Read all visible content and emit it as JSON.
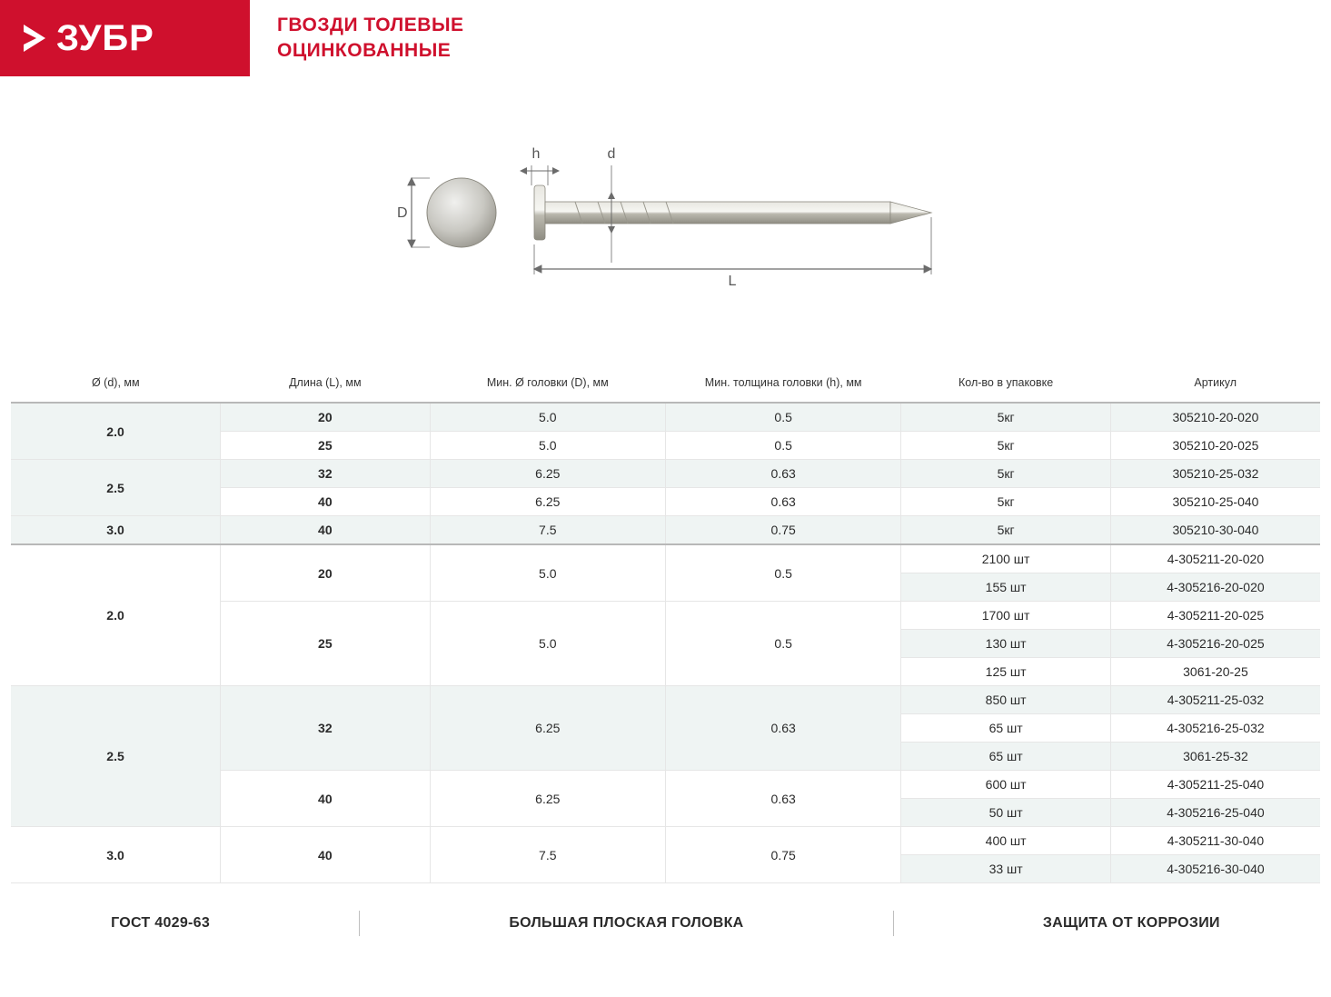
{
  "brand": "ЗУБР",
  "title_line1": "ГВОЗДИ ТОЛЕВЫЕ",
  "title_line2": "ОЦИНКОВАННЫЕ",
  "colors": {
    "brand_red": "#cf102d",
    "row_alt": "#eff4f3",
    "border": "#e6e6e6",
    "section_border": "#b8b8b8"
  },
  "diagram": {
    "labels": {
      "D": "D",
      "h": "h",
      "d": "d",
      "L": "L"
    }
  },
  "table": {
    "columns": [
      "Ø (d), мм",
      "Длина (L), мм",
      "Мин. Ø головки (D), мм",
      "Мин. толщина головки (h), мм",
      "Кол-во в упаковке",
      "Артикул"
    ],
    "rows": [
      {
        "d": "2.0",
        "d_span": 2,
        "L": "20",
        "L_span": 1,
        "D": "5.0",
        "D_span": 1,
        "h": "0.5",
        "h_span": 1,
        "q": "5кг",
        "art": "305210-20-020",
        "alt": true,
        "section": false
      },
      {
        "L": "25",
        "L_span": 1,
        "D": "5.0",
        "D_span": 1,
        "h": "0.5",
        "h_span": 1,
        "q": "5кг",
        "art": "305210-20-025",
        "alt": false
      },
      {
        "d": "2.5",
        "d_span": 2,
        "L": "32",
        "L_span": 1,
        "D": "6.25",
        "D_span": 1,
        "h": "0.63",
        "h_span": 1,
        "q": "5кг",
        "art": "305210-25-032",
        "alt": true
      },
      {
        "L": "40",
        "L_span": 1,
        "D": "6.25",
        "D_span": 1,
        "h": "0.63",
        "h_span": 1,
        "q": "5кг",
        "art": "305210-25-040",
        "alt": false
      },
      {
        "d": "3.0",
        "d_span": 1,
        "L": "40",
        "L_span": 1,
        "D": "7.5",
        "D_span": 1,
        "h": "0.75",
        "h_span": 1,
        "q": "5кг",
        "art": "305210-30-040",
        "alt": true
      },
      {
        "d": "2.0",
        "d_span": 5,
        "L": "20",
        "L_span": 2,
        "D": "5.0",
        "D_span": 2,
        "h": "0.5",
        "h_span": 2,
        "q": "2100 шт",
        "art": "4-305211-20-020",
        "alt": false,
        "section": true
      },
      {
        "q": "155 шт",
        "art": "4-305216-20-020",
        "alt": true
      },
      {
        "L": "25",
        "L_span": 3,
        "D": "5.0",
        "D_span": 3,
        "h": "0.5",
        "h_span": 3,
        "q": "1700 шт",
        "art": "4-305211-20-025",
        "alt": false
      },
      {
        "q": "130 шт",
        "art": "4-305216-20-025",
        "alt": true
      },
      {
        "q": "125 шт",
        "art": "3061-20-25",
        "alt": false
      },
      {
        "d": "2.5",
        "d_span": 5,
        "L": "32",
        "L_span": 3,
        "D": "6.25",
        "D_span": 3,
        "h": "0.63",
        "h_span": 3,
        "q": "850 шт",
        "art": "4-305211-25-032",
        "alt": true
      },
      {
        "q": "65 шт",
        "art": "4-305216-25-032",
        "alt": false
      },
      {
        "q": "65 шт",
        "art": "3061-25-32",
        "alt": true
      },
      {
        "L": "40",
        "L_span": 2,
        "D": "6.25",
        "D_span": 2,
        "h": "0.63",
        "h_span": 2,
        "q": "600 шт",
        "art": "4-305211-25-040",
        "alt": false
      },
      {
        "q": "50 шт",
        "art": "4-305216-25-040",
        "alt": true
      },
      {
        "d": "3.0",
        "d_span": 2,
        "L": "40",
        "L_span": 2,
        "D": "7.5",
        "D_span": 2,
        "h": "0.75",
        "h_span": 2,
        "q": "400 шт",
        "art": "4-305211-30-040",
        "alt": false
      },
      {
        "q": "33 шт",
        "art": "4-305216-30-040",
        "alt": true
      }
    ]
  },
  "footer": {
    "items": [
      "ГОСТ 4029-63",
      "БОЛЬШАЯ ПЛОСКАЯ ГОЛОВКА",
      "ЗАЩИТА ОТ КОРРОЗИИ"
    ]
  }
}
